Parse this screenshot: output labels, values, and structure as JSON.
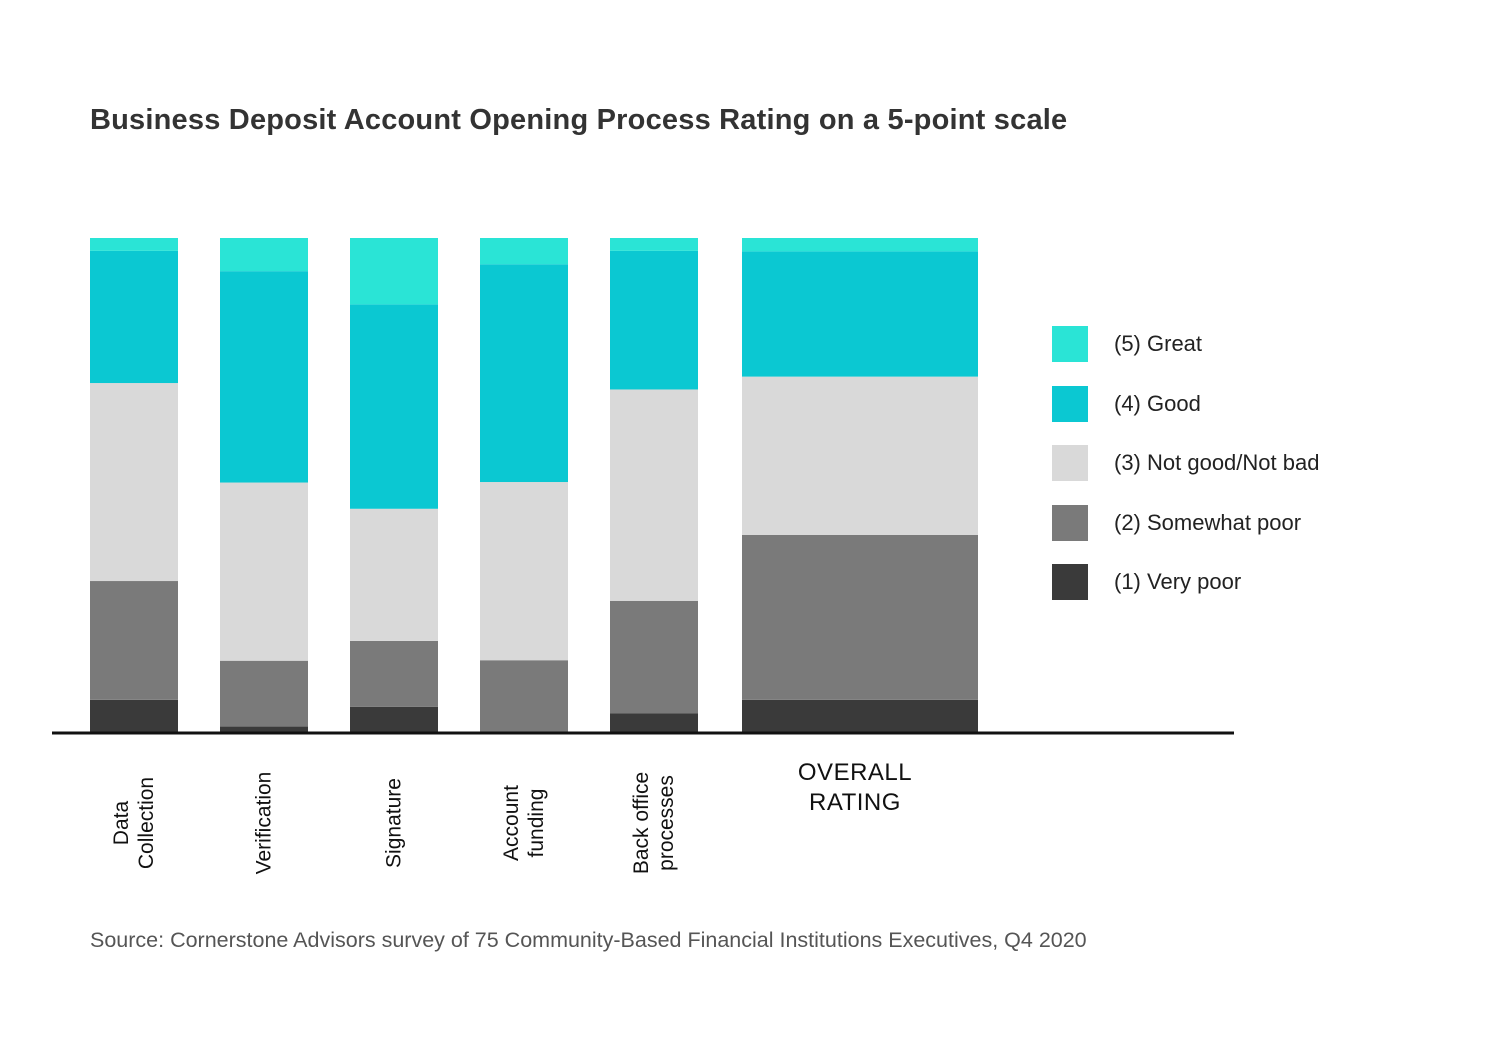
{
  "chart_data": {
    "type": "bar",
    "stacked": true,
    "normalized": true,
    "title": "Business Deposit Account Opening Process Rating on a 5-point scale",
    "source": "Source: Cornerstone Advisors survey of 75 Community-Based Financial Institutions Executives, Q4 2020",
    "categories": [
      {
        "lines": [
          "Data",
          "Collection"
        ],
        "rotated": true
      },
      {
        "lines": [
          "Verification"
        ],
        "rotated": true
      },
      {
        "lines": [
          "Signature"
        ],
        "rotated": true
      },
      {
        "lines": [
          "Account",
          "funding"
        ],
        "rotated": true
      },
      {
        "lines": [
          "Back office",
          "processes"
        ],
        "rotated": true
      },
      {
        "lines": [
          "OVERALL",
          "RATING"
        ],
        "rotated": false
      }
    ],
    "series": [
      {
        "name": "(1) Very poor",
        "color": "#3a3a3a",
        "values": [
          6.7,
          1.3,
          5.3,
          0.0,
          4.0,
          6.7
        ]
      },
      {
        "name": "(2) Somewhat poor",
        "color": "#7a7a7a",
        "values": [
          24.0,
          13.3,
          13.3,
          14.7,
          22.7,
          33.3
        ]
      },
      {
        "name": "(3) Not good/Not bad",
        "color": "#d9d9d9",
        "values": [
          40.0,
          36.0,
          26.7,
          36.0,
          42.7,
          32.0
        ]
      },
      {
        "name": "(4) Good",
        "color": "#0bc8d2",
        "values": [
          26.7,
          42.7,
          41.3,
          44.0,
          28.0,
          25.3
        ]
      },
      {
        "name": "(5) Great",
        "color": "#2ae4d6",
        "values": [
          2.6,
          6.7,
          13.4,
          5.3,
          2.6,
          2.7
        ]
      }
    ],
    "legend_order": [
      4,
      3,
      2,
      1,
      0
    ],
    "legend_position": "right",
    "ylim": [
      0,
      100
    ],
    "grid": false
  }
}
